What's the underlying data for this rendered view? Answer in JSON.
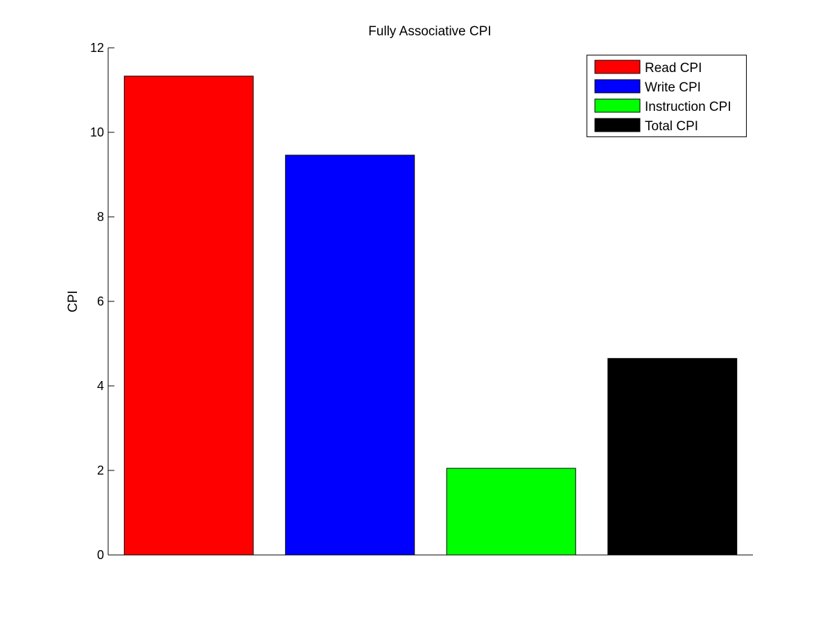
{
  "chart_data": {
    "type": "bar",
    "title": "Fully Associative CPI",
    "xlabel": "",
    "ylabel": "CPI",
    "ylim": [
      0,
      12
    ],
    "yticks": [
      0,
      2,
      4,
      6,
      8,
      10,
      12
    ],
    "ytick_labels": [
      "0",
      "2",
      "4",
      "6",
      "8",
      "10",
      "12"
    ],
    "grid": false,
    "legend_position": "top-right",
    "series": [
      {
        "name": "Read CPI",
        "value": 11.33,
        "color": "#ff0000"
      },
      {
        "name": "Write CPI",
        "value": 9.46,
        "color": "#0000ff"
      },
      {
        "name": "Instruction CPI",
        "value": 2.05,
        "color": "#00ff00"
      },
      {
        "name": "Total CPI",
        "value": 4.65,
        "color": "#000000"
      }
    ]
  }
}
